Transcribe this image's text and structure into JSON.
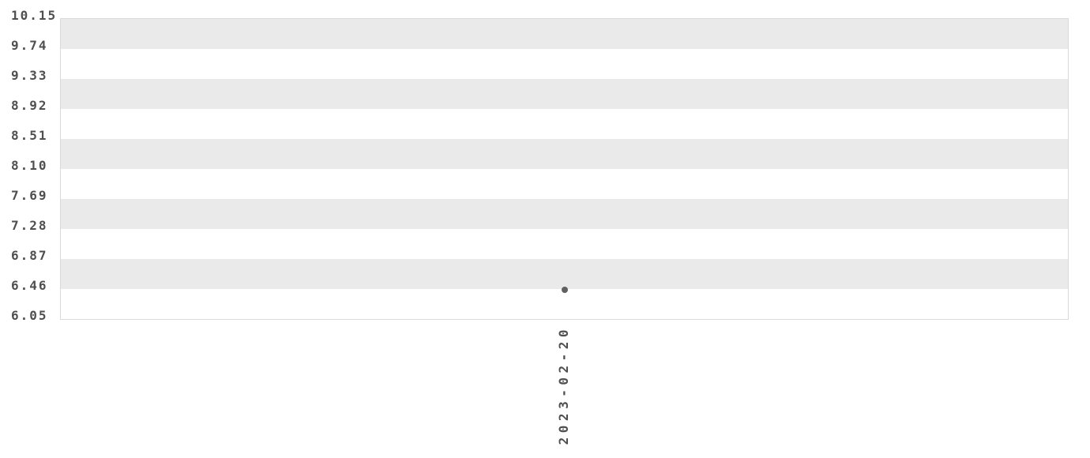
{
  "chart_data": {
    "type": "scatter",
    "title": "",
    "xlabel": "",
    "ylabel": "",
    "x": [
      "2023-02-20"
    ],
    "values": [
      6.45
    ],
    "series": [
      {
        "name": "",
        "x": [
          "2023-02-20"
        ],
        "values": [
          6.45
        ]
      }
    ],
    "ylim": [
      6.05,
      10.15
    ],
    "ytick_step": 0.41,
    "ytick_labels": [
      "10.15",
      "9.74",
      "9.33",
      "8.92",
      "8.51",
      "8.10",
      "7.69",
      "7.28",
      "6.87",
      "6.46",
      "6.05"
    ],
    "xtick_labels": [
      "2023-02-20"
    ],
    "grid": "alternating-horizontal-bands",
    "legend": "none",
    "marker": "circle",
    "colors": {
      "band": "#eaeaea",
      "band_alt": "#ffffff",
      "plot_border": "#d9d9d9",
      "tick_text": "#4f4f4f",
      "point": "#606060",
      "background": "#ffffff"
    }
  }
}
